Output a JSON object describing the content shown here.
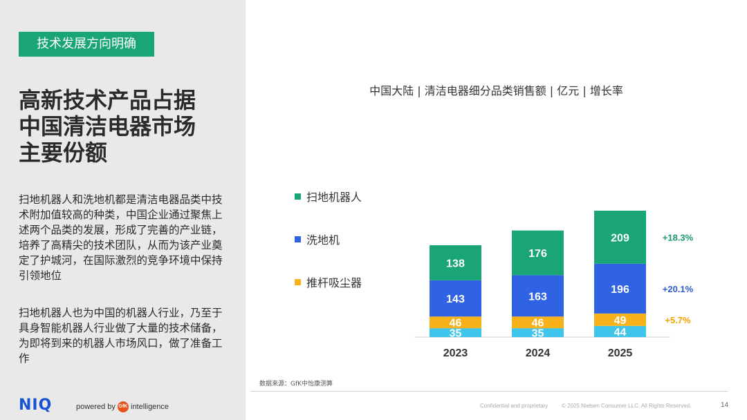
{
  "left": {
    "tag": "技术发展方向明确",
    "headline": [
      "高新技术产品占据",
      "中国清洁电器市场",
      "主要份额"
    ],
    "paragraph1": "扫地机器人和洗地机都是清洁电器品类中技术附加值较高的种类，中国企业通过聚焦上述两个品类的发展，形成了完善的产业链，培养了高精尖的技术团队，从而为该产业奠定了护城河，在国际激烈的竞争环境中保持引领地位",
    "paragraph2": "扫地机器人也为中国的机器人行业，乃至于具身智能机器人行业做了大量的技术储备，为即将到来的机器人市场风口，做了准备工作",
    "logo": "NIQ",
    "powered_by": "powered by",
    "gfk": "GfK",
    "intelligence": "intelligence"
  },
  "chart_data": {
    "type": "bar",
    "stacked": true,
    "title": "中国大陆 | 清洁电器细分品类销售额 | 亿元 | 增长率",
    "categories": [
      "2023",
      "2024",
      "2025"
    ],
    "series": [
      {
        "name": "",
        "values": [
          35,
          35,
          44
        ],
        "color": "#3fc4ec",
        "growth": "",
        "growth_color": ""
      },
      {
        "name": "推杆吸尘器",
        "values": [
          46,
          46,
          49
        ],
        "color": "#f7b21a",
        "growth": "+5.7%",
        "growth_color": "#f0a400"
      },
      {
        "name": "洗地机",
        "values": [
          143,
          163,
          196
        ],
        "color": "#2f63e3",
        "growth": "+20.1%",
        "growth_color": "#2a5ad4"
      },
      {
        "name": "扫地机器人",
        "values": [
          138,
          176,
          209
        ],
        "color": "#1aa577",
        "growth": "+18.3%",
        "growth_color": "#1a9a6c"
      }
    ],
    "legend": [
      "扫地机器人",
      "洗地机",
      "推杆吸尘器"
    ],
    "grid": false,
    "legend_position": "left"
  },
  "footer": {
    "source": "数据来源：GfK中怡康测算",
    "confidential": "Confidential and proprietary",
    "copyright": "© 2025 Nielsen Consumer LLC. All Rights Reserved.",
    "page": "14"
  }
}
